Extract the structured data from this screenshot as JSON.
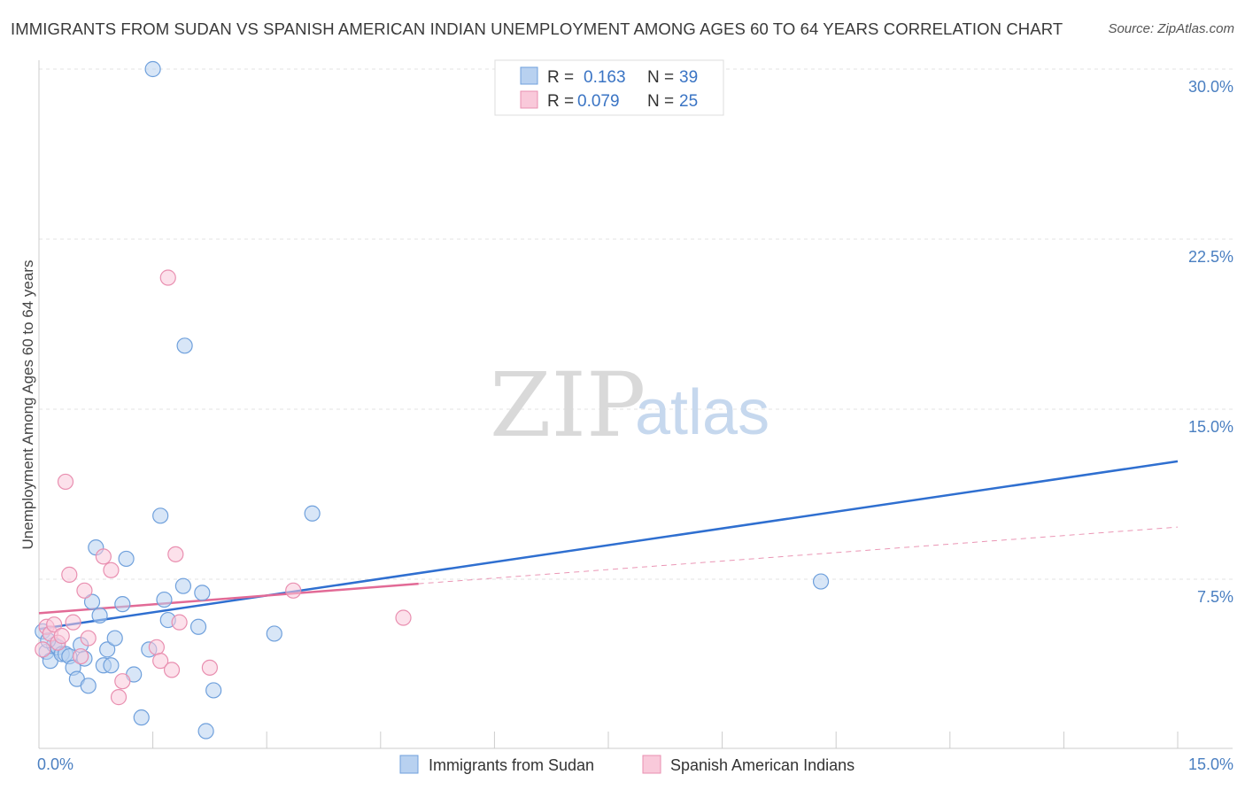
{
  "header": {
    "title": "IMMIGRANTS FROM SUDAN VS SPANISH AMERICAN INDIAN UNEMPLOYMENT AMONG AGES 60 TO 64 YEARS CORRELATION CHART",
    "source": "Source: ZipAtlas.com"
  },
  "watermark": {
    "zip": "ZIP",
    "atlas": "atlas"
  },
  "legend": {
    "r_label": "R =",
    "n_label": "N =",
    "series": [
      {
        "r": "0.163",
        "n": "39"
      },
      {
        "r": "0.079",
        "n": "25"
      }
    ]
  },
  "chart_data": {
    "type": "scatter",
    "title": "IMMIGRANTS FROM SUDAN VS SPANISH AMERICAN INDIAN UNEMPLOYMENT AMONG AGES 60 TO 64 YEARS CORRELATION CHART",
    "xlabel": "",
    "ylabel": "Unemployment Among Ages 60 to 64 years",
    "xlim": [
      0,
      15
    ],
    "ylim": [
      0,
      31
    ],
    "x_tick_labels": [
      {
        "value": 0,
        "label": "0.0%"
      },
      {
        "value": 15,
        "label": "15.0%"
      }
    ],
    "x_minor_ticks": [
      1.5,
      3,
      4.5,
      6,
      7.5,
      9,
      10.5,
      12,
      13.5,
      15
    ],
    "y_ticks": [
      {
        "value": 7.5,
        "label": "7.5%"
      },
      {
        "value": 15,
        "label": "15.0%"
      },
      {
        "value": 22.5,
        "label": "22.5%"
      },
      {
        "value": 30,
        "label": "30.0%"
      }
    ],
    "grid": true,
    "legend_position": "bottom",
    "series": [
      {
        "name": "Immigrants from Sudan",
        "color": "#6fa0dc",
        "fill": "#b8d1f0",
        "line_color": "#2f6fd0",
        "r": 0.163,
        "n": 39,
        "trend": {
          "x0": 0,
          "y0": 5.3,
          "x1": 15,
          "y1": 12.7
        },
        "points": [
          [
            0.05,
            5.2
          ],
          [
            0.1,
            4.3
          ],
          [
            0.15,
            3.9
          ],
          [
            0.2,
            4.6
          ],
          [
            0.25,
            4.5
          ],
          [
            0.3,
            4.2
          ],
          [
            0.35,
            4.2
          ],
          [
            0.4,
            4.1
          ],
          [
            0.45,
            3.6
          ],
          [
            0.5,
            3.1
          ],
          [
            0.55,
            4.6
          ],
          [
            0.6,
            4.0
          ],
          [
            0.65,
            2.8
          ],
          [
            0.7,
            6.5
          ],
          [
            0.75,
            8.9
          ],
          [
            0.8,
            5.9
          ],
          [
            0.85,
            3.7
          ],
          [
            0.9,
            4.4
          ],
          [
            0.95,
            3.7
          ],
          [
            1.0,
            4.9
          ],
          [
            1.1,
            6.4
          ],
          [
            1.15,
            8.4
          ],
          [
            1.25,
            3.3
          ],
          [
            1.35,
            1.4
          ],
          [
            1.45,
            4.4
          ],
          [
            1.5,
            30.0
          ],
          [
            1.6,
            10.3
          ],
          [
            1.65,
            6.6
          ],
          [
            1.7,
            5.7
          ],
          [
            1.9,
            7.2
          ],
          [
            1.92,
            17.8
          ],
          [
            2.1,
            5.4
          ],
          [
            2.15,
            6.9
          ],
          [
            2.2,
            0.8
          ],
          [
            2.3,
            2.6
          ],
          [
            3.1,
            5.1
          ],
          [
            3.6,
            10.4
          ],
          [
            10.3,
            7.4
          ],
          [
            0.12,
            4.8
          ]
        ]
      },
      {
        "name": "Spanish American Indians",
        "color": "#e98fb0",
        "fill": "#f9c9da",
        "line_color": "#e26a96",
        "r": 0.079,
        "n": 25,
        "trend": {
          "x0": 0,
          "y0": 6.0,
          "x1": 5,
          "y1": 7.3
        },
        "trend_extension": {
          "x0": 5,
          "y0": 7.3,
          "x1": 15,
          "y1": 9.8
        },
        "points": [
          [
            0.05,
            4.4
          ],
          [
            0.1,
            5.4
          ],
          [
            0.15,
            5.1
          ],
          [
            0.2,
            5.5
          ],
          [
            0.25,
            4.7
          ],
          [
            0.3,
            5.0
          ],
          [
            0.35,
            11.8
          ],
          [
            0.4,
            7.7
          ],
          [
            0.45,
            5.6
          ],
          [
            0.55,
            4.1
          ],
          [
            0.6,
            7.0
          ],
          [
            0.65,
            4.9
          ],
          [
            0.85,
            8.5
          ],
          [
            0.95,
            7.9
          ],
          [
            1.05,
            2.3
          ],
          [
            1.1,
            3.0
          ],
          [
            1.55,
            4.5
          ],
          [
            1.6,
            3.9
          ],
          [
            1.7,
            20.8
          ],
          [
            1.75,
            3.5
          ],
          [
            1.8,
            8.6
          ],
          [
            1.85,
            5.6
          ],
          [
            2.25,
            3.6
          ],
          [
            3.35,
            7.0
          ],
          [
            4.8,
            5.8
          ]
        ]
      }
    ]
  }
}
